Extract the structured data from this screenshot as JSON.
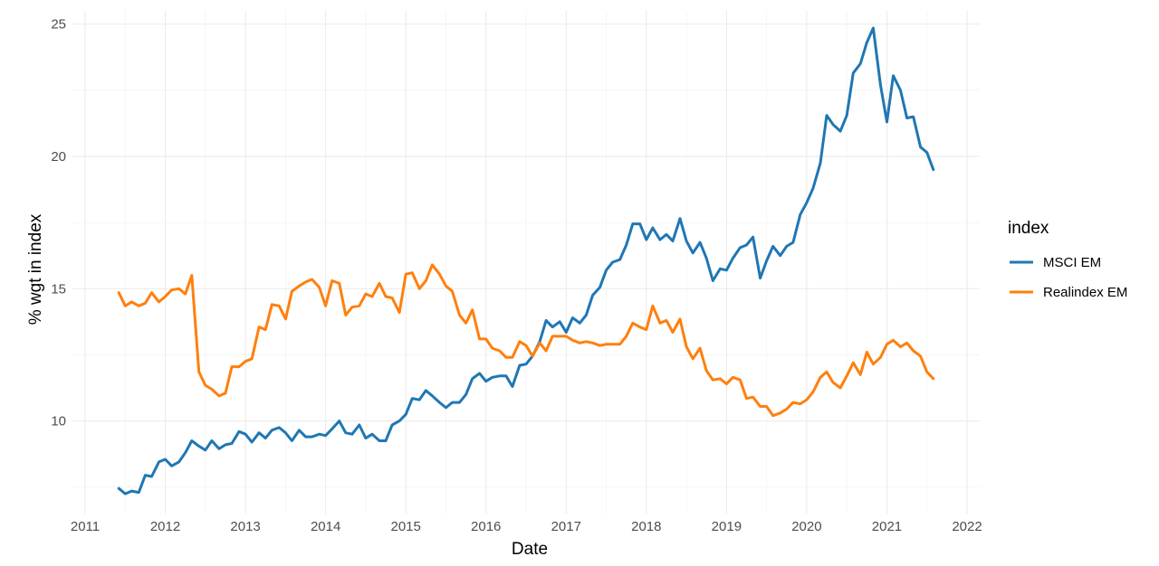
{
  "chart_data": {
    "type": "line",
    "xlabel": "Date",
    "ylabel": "% wgt in index",
    "x_ticks": [
      "2011",
      "2012",
      "2013",
      "2014",
      "2015",
      "2016",
      "2017",
      "2018",
      "2019",
      "2020",
      "2021",
      "2022"
    ],
    "y_ticks": [
      10,
      15,
      20,
      25
    ],
    "xlim": [
      2011.0,
      2022.0
    ],
    "ylim": [
      6.5,
      25.5
    ],
    "grid": true,
    "legend": {
      "title": "index",
      "position": "right"
    },
    "series": [
      {
        "name": "MSCI EM",
        "color": "#1f77b4",
        "points": [
          [
            2011.42,
            7.45
          ],
          [
            2011.5,
            7.25
          ],
          [
            2011.58,
            7.35
          ],
          [
            2011.67,
            7.3
          ],
          [
            2011.75,
            7.95
          ],
          [
            2011.83,
            7.9
          ],
          [
            2011.92,
            8.45
          ],
          [
            2012.0,
            8.55
          ],
          [
            2012.08,
            8.3
          ],
          [
            2012.17,
            8.45
          ],
          [
            2012.25,
            8.8
          ],
          [
            2012.33,
            9.25
          ],
          [
            2012.42,
            9.05
          ],
          [
            2012.5,
            8.9
          ],
          [
            2012.58,
            9.25
          ],
          [
            2012.67,
            8.95
          ],
          [
            2012.75,
            9.1
          ],
          [
            2012.83,
            9.15
          ],
          [
            2012.92,
            9.6
          ],
          [
            2013.0,
            9.5
          ],
          [
            2013.08,
            9.2
          ],
          [
            2013.17,
            9.55
          ],
          [
            2013.25,
            9.35
          ],
          [
            2013.33,
            9.65
          ],
          [
            2013.42,
            9.75
          ],
          [
            2013.5,
            9.55
          ],
          [
            2013.58,
            9.25
          ],
          [
            2013.67,
            9.65
          ],
          [
            2013.75,
            9.4
          ],
          [
            2013.83,
            9.4
          ],
          [
            2013.92,
            9.5
          ],
          [
            2014.0,
            9.45
          ],
          [
            2014.08,
            9.7
          ],
          [
            2014.17,
            10.0
          ],
          [
            2014.25,
            9.55
          ],
          [
            2014.33,
            9.5
          ],
          [
            2014.42,
            9.85
          ],
          [
            2014.5,
            9.35
          ],
          [
            2014.58,
            9.5
          ],
          [
            2014.67,
            9.25
          ],
          [
            2014.75,
            9.25
          ],
          [
            2014.83,
            9.85
          ],
          [
            2014.92,
            10.0
          ],
          [
            2015.0,
            10.25
          ],
          [
            2015.08,
            10.85
          ],
          [
            2015.17,
            10.8
          ],
          [
            2015.25,
            11.15
          ],
          [
            2015.33,
            10.95
          ],
          [
            2015.42,
            10.7
          ],
          [
            2015.5,
            10.5
          ],
          [
            2015.58,
            10.7
          ],
          [
            2015.67,
            10.7
          ],
          [
            2015.75,
            11.0
          ],
          [
            2015.83,
            11.6
          ],
          [
            2015.92,
            11.8
          ],
          [
            2016.0,
            11.5
          ],
          [
            2016.08,
            11.65
          ],
          [
            2016.17,
            11.7
          ],
          [
            2016.25,
            11.7
          ],
          [
            2016.33,
            11.3
          ],
          [
            2016.42,
            12.1
          ],
          [
            2016.5,
            12.15
          ],
          [
            2016.58,
            12.45
          ],
          [
            2016.67,
            13.0
          ],
          [
            2016.75,
            13.8
          ],
          [
            2016.83,
            13.55
          ],
          [
            2016.92,
            13.75
          ],
          [
            2017.0,
            13.35
          ],
          [
            2017.08,
            13.9
          ],
          [
            2017.17,
            13.7
          ],
          [
            2017.25,
            14.0
          ],
          [
            2017.33,
            14.75
          ],
          [
            2017.42,
            15.05
          ],
          [
            2017.5,
            15.7
          ],
          [
            2017.58,
            16.0
          ],
          [
            2017.67,
            16.1
          ],
          [
            2017.75,
            16.65
          ],
          [
            2017.83,
            17.45
          ],
          [
            2017.92,
            17.45
          ],
          [
            2018.0,
            16.85
          ],
          [
            2018.08,
            17.3
          ],
          [
            2018.17,
            16.85
          ],
          [
            2018.25,
            17.05
          ],
          [
            2018.33,
            16.8
          ],
          [
            2018.42,
            17.65
          ],
          [
            2018.5,
            16.8
          ],
          [
            2018.58,
            16.35
          ],
          [
            2018.67,
            16.75
          ],
          [
            2018.75,
            16.15
          ],
          [
            2018.83,
            15.3
          ],
          [
            2018.92,
            15.75
          ],
          [
            2019.0,
            15.7
          ],
          [
            2019.08,
            16.15
          ],
          [
            2019.17,
            16.55
          ],
          [
            2019.25,
            16.65
          ],
          [
            2019.33,
            16.95
          ],
          [
            2019.42,
            15.4
          ],
          [
            2019.5,
            16.05
          ],
          [
            2019.58,
            16.6
          ],
          [
            2019.67,
            16.25
          ],
          [
            2019.75,
            16.6
          ],
          [
            2019.83,
            16.75
          ],
          [
            2019.92,
            17.8
          ],
          [
            2020.0,
            18.25
          ],
          [
            2020.08,
            18.8
          ],
          [
            2020.17,
            19.75
          ],
          [
            2020.25,
            21.55
          ],
          [
            2020.33,
            21.2
          ],
          [
            2020.42,
            20.95
          ],
          [
            2020.5,
            21.55
          ],
          [
            2020.58,
            23.15
          ],
          [
            2020.67,
            23.5
          ],
          [
            2020.75,
            24.3
          ],
          [
            2020.83,
            24.85
          ],
          [
            2020.92,
            22.7
          ],
          [
            2021.0,
            21.3
          ],
          [
            2021.08,
            23.05
          ],
          [
            2021.17,
            22.5
          ],
          [
            2021.25,
            21.45
          ],
          [
            2021.33,
            21.5
          ],
          [
            2021.42,
            20.35
          ],
          [
            2021.5,
            20.15
          ],
          [
            2021.58,
            19.5
          ]
        ]
      },
      {
        "name": "Realindex EM",
        "color": "#ff7f0e",
        "points": [
          [
            2011.42,
            14.85
          ],
          [
            2011.5,
            14.35
          ],
          [
            2011.58,
            14.5
          ],
          [
            2011.67,
            14.35
          ],
          [
            2011.75,
            14.45
          ],
          [
            2011.83,
            14.85
          ],
          [
            2011.92,
            14.5
          ],
          [
            2012.0,
            14.7
          ],
          [
            2012.08,
            14.95
          ],
          [
            2012.17,
            15.0
          ],
          [
            2012.25,
            14.8
          ],
          [
            2012.33,
            15.5
          ],
          [
            2012.42,
            11.85
          ],
          [
            2012.5,
            11.35
          ],
          [
            2012.58,
            11.2
          ],
          [
            2012.67,
            10.95
          ],
          [
            2012.75,
            11.05
          ],
          [
            2012.83,
            12.05
          ],
          [
            2012.92,
            12.05
          ],
          [
            2013.0,
            12.25
          ],
          [
            2013.08,
            12.35
          ],
          [
            2013.17,
            13.55
          ],
          [
            2013.25,
            13.45
          ],
          [
            2013.33,
            14.4
          ],
          [
            2013.42,
            14.35
          ],
          [
            2013.5,
            13.85
          ],
          [
            2013.58,
            14.9
          ],
          [
            2013.67,
            15.1
          ],
          [
            2013.75,
            15.25
          ],
          [
            2013.83,
            15.35
          ],
          [
            2013.92,
            15.05
          ],
          [
            2014.0,
            14.35
          ],
          [
            2014.08,
            15.3
          ],
          [
            2014.17,
            15.2
          ],
          [
            2014.25,
            14.0
          ],
          [
            2014.33,
            14.3
          ],
          [
            2014.42,
            14.35
          ],
          [
            2014.5,
            14.8
          ],
          [
            2014.58,
            14.7
          ],
          [
            2014.67,
            15.2
          ],
          [
            2014.75,
            14.7
          ],
          [
            2014.83,
            14.65
          ],
          [
            2014.92,
            14.1
          ],
          [
            2015.0,
            15.55
          ],
          [
            2015.08,
            15.6
          ],
          [
            2015.17,
            15.0
          ],
          [
            2015.25,
            15.3
          ],
          [
            2015.33,
            15.9
          ],
          [
            2015.42,
            15.55
          ],
          [
            2015.5,
            15.1
          ],
          [
            2015.58,
            14.9
          ],
          [
            2015.67,
            14.0
          ],
          [
            2015.75,
            13.7
          ],
          [
            2015.83,
            14.2
          ],
          [
            2015.92,
            13.1
          ],
          [
            2016.0,
            13.1
          ],
          [
            2016.08,
            12.75
          ],
          [
            2016.17,
            12.65
          ],
          [
            2016.25,
            12.4
          ],
          [
            2016.33,
            12.4
          ],
          [
            2016.42,
            13.0
          ],
          [
            2016.5,
            12.85
          ],
          [
            2016.58,
            12.45
          ],
          [
            2016.67,
            12.95
          ],
          [
            2016.75,
            12.65
          ],
          [
            2016.83,
            13.2
          ],
          [
            2016.92,
            13.2
          ],
          [
            2017.0,
            13.2
          ],
          [
            2017.08,
            13.05
          ],
          [
            2017.17,
            12.95
          ],
          [
            2017.25,
            13.0
          ],
          [
            2017.33,
            12.95
          ],
          [
            2017.42,
            12.85
          ],
          [
            2017.5,
            12.9
          ],
          [
            2017.58,
            12.9
          ],
          [
            2017.67,
            12.9
          ],
          [
            2017.75,
            13.2
          ],
          [
            2017.83,
            13.7
          ],
          [
            2017.92,
            13.55
          ],
          [
            2018.0,
            13.45
          ],
          [
            2018.08,
            14.35
          ],
          [
            2018.17,
            13.7
          ],
          [
            2018.25,
            13.8
          ],
          [
            2018.33,
            13.35
          ],
          [
            2018.42,
            13.85
          ],
          [
            2018.5,
            12.8
          ],
          [
            2018.58,
            12.35
          ],
          [
            2018.67,
            12.75
          ],
          [
            2018.75,
            11.9
          ],
          [
            2018.83,
            11.55
          ],
          [
            2018.92,
            11.6
          ],
          [
            2019.0,
            11.4
          ],
          [
            2019.08,
            11.65
          ],
          [
            2019.17,
            11.55
          ],
          [
            2019.25,
            10.85
          ],
          [
            2019.33,
            10.9
          ],
          [
            2019.42,
            10.55
          ],
          [
            2019.5,
            10.55
          ],
          [
            2019.58,
            10.2
          ],
          [
            2019.67,
            10.3
          ],
          [
            2019.75,
            10.45
          ],
          [
            2019.83,
            10.7
          ],
          [
            2019.92,
            10.65
          ],
          [
            2020.0,
            10.8
          ],
          [
            2020.08,
            11.1
          ],
          [
            2020.17,
            11.65
          ],
          [
            2020.25,
            11.85
          ],
          [
            2020.33,
            11.45
          ],
          [
            2020.42,
            11.25
          ],
          [
            2020.5,
            11.7
          ],
          [
            2020.58,
            12.2
          ],
          [
            2020.67,
            11.75
          ],
          [
            2020.75,
            12.6
          ],
          [
            2020.83,
            12.15
          ],
          [
            2020.92,
            12.4
          ],
          [
            2021.0,
            12.9
          ],
          [
            2021.08,
            13.05
          ],
          [
            2021.17,
            12.8
          ],
          [
            2021.25,
            12.95
          ],
          [
            2021.33,
            12.65
          ],
          [
            2021.42,
            12.45
          ],
          [
            2021.5,
            11.85
          ],
          [
            2021.58,
            11.6
          ]
        ]
      }
    ]
  }
}
